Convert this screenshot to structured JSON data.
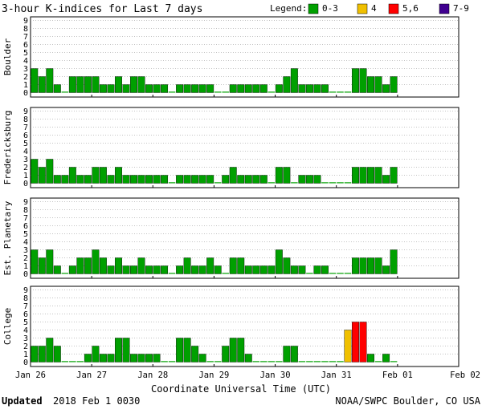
{
  "title": "3-hour K-indices for Last 7 days",
  "legend": {
    "label": "Legend:",
    "items": [
      {
        "label": "0-3",
        "color": "#00a000"
      },
      {
        "label": "4",
        "color": "#f0c000"
      },
      {
        "label": "5,6",
        "color": "#ff0000"
      },
      {
        "label": "7-9",
        "color": "#400090"
      }
    ]
  },
  "xlabel": "Coordinate Universal Time (UTC)",
  "footer": {
    "updated_label": "Updated",
    "updated_value": "2018 Feb  1 0030",
    "credit": "NOAA/SWPC Boulder, CO USA"
  },
  "chart_data": {
    "type": "bar",
    "ylim": [
      0,
      9
    ],
    "yticks": [
      "0",
      "1",
      "2",
      "3",
      "4",
      "5",
      "6",
      "7",
      "8",
      "9"
    ],
    "xticks": [
      "Jan 26",
      "Jan 27",
      "Jan 28",
      "Jan 29",
      "Jan 30",
      "Jan 31",
      "Feb 01",
      "Feb 02"
    ],
    "bins_per_day": 8,
    "series": [
      {
        "name": "Boulder",
        "values": [
          3,
          2,
          3,
          1,
          0,
          2,
          2,
          2,
          2,
          1,
          1,
          2,
          1,
          2,
          2,
          1,
          1,
          1,
          0,
          1,
          1,
          1,
          1,
          1,
          0,
          0,
          1,
          1,
          1,
          1,
          1,
          0,
          1,
          2,
          3,
          1,
          1,
          1,
          1,
          0,
          0,
          0,
          3,
          3,
          2,
          2,
          1,
          2
        ]
      },
      {
        "name": "Fredericksburg",
        "values": [
          3,
          2,
          3,
          1,
          1,
          2,
          1,
          1,
          2,
          2,
          1,
          2,
          1,
          1,
          1,
          1,
          1,
          1,
          0,
          1,
          1,
          1,
          1,
          1,
          0,
          1,
          2,
          1,
          1,
          1,
          1,
          0,
          2,
          2,
          0,
          1,
          1,
          1,
          0,
          0,
          0,
          0,
          2,
          2,
          2,
          2,
          1,
          2
        ]
      },
      {
        "name": "Est. Planetary",
        "values": [
          3,
          2,
          3,
          1,
          0,
          1,
          2,
          2,
          3,
          2,
          1,
          2,
          1,
          1,
          2,
          1,
          1,
          1,
          0,
          1,
          2,
          1,
          1,
          2,
          1,
          0,
          2,
          2,
          1,
          1,
          1,
          1,
          3,
          2,
          1,
          1,
          0,
          1,
          1,
          0,
          0,
          0,
          2,
          2,
          2,
          2,
          1,
          3
        ]
      },
      {
        "name": "College",
        "values": [
          2,
          2,
          3,
          2,
          0,
          0,
          0,
          1,
          2,
          1,
          1,
          3,
          3,
          1,
          1,
          1,
          1,
          0,
          0,
          3,
          3,
          2,
          1,
          0,
          0,
          2,
          3,
          3,
          1,
          0,
          0,
          0,
          0,
          2,
          2,
          0,
          0,
          0,
          0,
          0,
          0,
          4,
          5,
          5,
          1,
          0,
          1,
          0
        ]
      }
    ]
  }
}
